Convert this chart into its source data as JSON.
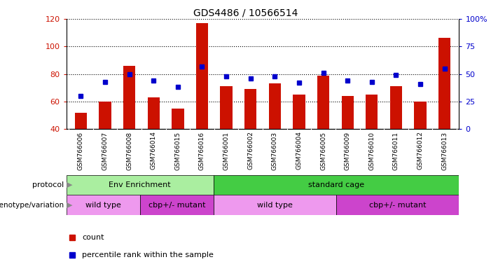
{
  "title": "GDS4486 / 10566514",
  "samples": [
    "GSM766006",
    "GSM766007",
    "GSM766008",
    "GSM766014",
    "GSM766015",
    "GSM766016",
    "GSM766001",
    "GSM766002",
    "GSM766003",
    "GSM766004",
    "GSM766005",
    "GSM766009",
    "GSM766010",
    "GSM766011",
    "GSM766012",
    "GSM766013"
  ],
  "counts": [
    52,
    60,
    86,
    63,
    55,
    117,
    71,
    69,
    73,
    65,
    79,
    64,
    65,
    71,
    60,
    106
  ],
  "percentiles": [
    30,
    43,
    50,
    44,
    38,
    57,
    48,
    46,
    48,
    42,
    51,
    44,
    43,
    49,
    41,
    55
  ],
  "ylim_left": [
    40,
    120
  ],
  "ylim_right": [
    0,
    100
  ],
  "yticks_left": [
    40,
    60,
    80,
    100,
    120
  ],
  "yticks_right": [
    0,
    25,
    50,
    75,
    100
  ],
  "yticklabels_right": [
    "0",
    "25",
    "50",
    "75",
    "100%"
  ],
  "bar_color": "#cc1100",
  "dot_color": "#0000cc",
  "sample_label_bg": "#cccccc",
  "protocol_groups": [
    {
      "label": "Env Enrichment",
      "start": 0,
      "end": 6,
      "color": "#aaeea0"
    },
    {
      "label": "standard cage",
      "start": 6,
      "end": 16,
      "color": "#44cc44"
    }
  ],
  "genotype_groups": [
    {
      "label": "wild type",
      "start": 0,
      "end": 3,
      "color": "#ee99ee"
    },
    {
      "label": "cbp+/- mutant",
      "start": 3,
      "end": 6,
      "color": "#cc44cc"
    },
    {
      "label": "wild type",
      "start": 6,
      "end": 11,
      "color": "#ee99ee"
    },
    {
      "label": "cbp+/- mutant",
      "start": 11,
      "end": 16,
      "color": "#cc44cc"
    }
  ],
  "title_fontsize": 10,
  "bar_width": 0.5,
  "grid_linestyle": ":",
  "grid_linewidth": 0.8,
  "grid_color": "#000000"
}
